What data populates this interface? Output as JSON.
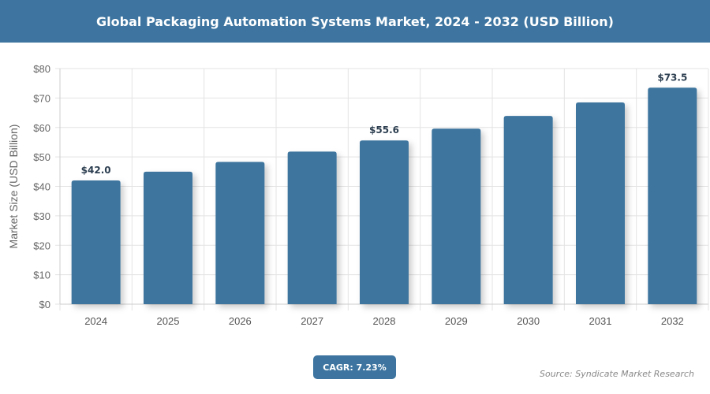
{
  "chart_data": {
    "type": "bar",
    "title": "Global Packaging Automation Systems Market, 2024 - 2032 (USD Billion)",
    "ylabel": "Market Size (USD Billion)",
    "xlabel": "",
    "categories": [
      "2024",
      "2025",
      "2026",
      "2027",
      "2028",
      "2029",
      "2030",
      "2031",
      "2032"
    ],
    "values": [
      42.0,
      45.0,
      48.3,
      51.8,
      55.6,
      59.6,
      63.9,
      68.5,
      73.5
    ],
    "data_labels": {
      "0": "$42.0",
      "4": "$55.6",
      "8": "$73.5"
    },
    "ylim": [
      0,
      80
    ],
    "yticks": [
      0,
      10,
      20,
      30,
      40,
      50,
      60,
      70,
      80
    ],
    "ytick_labels": [
      "$0",
      "$10",
      "$20",
      "$30",
      "$40",
      "$50",
      "$60",
      "$70",
      "$80"
    ],
    "grid": true,
    "bar_color": "#3d759e"
  },
  "cagr_label": "CAGR: 7.23%",
  "source": "Source: Syndicate Market Research"
}
